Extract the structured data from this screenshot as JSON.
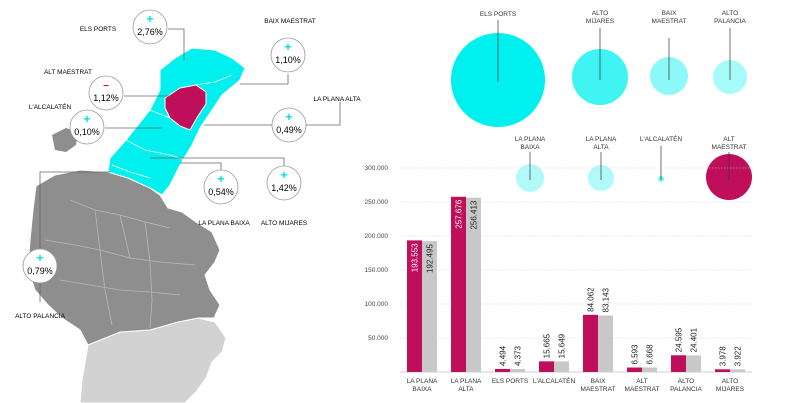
{
  "colors": {
    "cyan": "#00f0f0",
    "cyan_light": "#9ff7f7",
    "magenta": "#bf0f5a",
    "gray_bar": "#c8c8c8",
    "gray_map": "#8e8e8e",
    "gray_map_light": "#d2d2d2",
    "axis_text": "#444444"
  },
  "map_callouts": [
    {
      "region": "ELS PORTS",
      "value": "2,76%",
      "sign": "plus"
    },
    {
      "region": "BAIX MAESTRAT",
      "value": "1,10%",
      "sign": "plus"
    },
    {
      "region": "ALT MAESTRAT",
      "value": "1,12%",
      "sign": "minus"
    },
    {
      "region": "L'ALCALATÉN",
      "value": "0,10%",
      "sign": "plus"
    },
    {
      "region": "LA PLANA ALTA",
      "value": "0,49%",
      "sign": "plus"
    },
    {
      "region": "LA PLANA BAIXA",
      "value": "0,54%",
      "sign": "plus"
    },
    {
      "region": "ALTO MIJARES",
      "value": "1,42%",
      "sign": "plus"
    },
    {
      "region": "ALTO PALANCIA",
      "value": "0,79%",
      "sign": "plus"
    }
  ],
  "bubbles": [
    {
      "label": [
        "ELS PORTS"
      ],
      "change": "plus"
    },
    {
      "label": [
        "ALTO",
        "MIJARES"
      ],
      "change": "plus"
    },
    {
      "label": [
        "BAIX",
        "MAESTRAT"
      ],
      "change": "plus"
    },
    {
      "label": [
        "ALTO",
        "PALANCIA"
      ],
      "change": "plus"
    },
    {
      "label": [
        "LA PLANA",
        "BAIXA"
      ],
      "change": "plus"
    },
    {
      "label": [
        "LA PLANA",
        "ALTA"
      ],
      "change": "plus"
    },
    {
      "label": [
        "L'ALCALATÉN"
      ],
      "change": "plus"
    },
    {
      "label": [
        "ALT",
        "MAESTRAT"
      ],
      "change": "minus"
    }
  ],
  "chart_data": {
    "type": "bar",
    "categories": [
      [
        "LA PLANA",
        "BAIXA"
      ],
      [
        "LA PLANA",
        "ALTA"
      ],
      [
        "ELS PORTS"
      ],
      [
        "L'ALCALATÉN"
      ],
      [
        "BAIX",
        "MAESTRAT"
      ],
      [
        "ALT",
        "MAESTRAT"
      ],
      [
        "ALTO",
        "PALANCIA"
      ],
      [
        "ALTO",
        "MIJARES"
      ]
    ],
    "series": [
      {
        "color": "#bf0f5a",
        "values": [
          193553,
          257676,
          4494,
          15665,
          84062,
          6593,
          24595,
          3978
        ],
        "labels": [
          "193.553",
          "257.676",
          "4.494",
          "15.665",
          "84.062",
          "6.593",
          "24.595",
          "3.978"
        ]
      },
      {
        "color": "#c8c8c8",
        "values": [
          192495,
          256413,
          4373,
          15649,
          83143,
          6668,
          24401,
          3922
        ],
        "labels": [
          "192.495",
          "256.413",
          "4.373",
          "15.649",
          "83.143",
          "6.668",
          "24.401",
          "3.922"
        ]
      }
    ],
    "yticks": [
      300000,
      250000,
      200000,
      150000,
      100000,
      50000
    ],
    "ytick_labels": [
      "300.000",
      "250.000",
      "200.000",
      "150.000",
      "100.000",
      "50.000"
    ],
    "ylim": [
      0,
      300000
    ],
    "grid": true,
    "xlabel": "",
    "ylabel": "",
    "title": ""
  }
}
